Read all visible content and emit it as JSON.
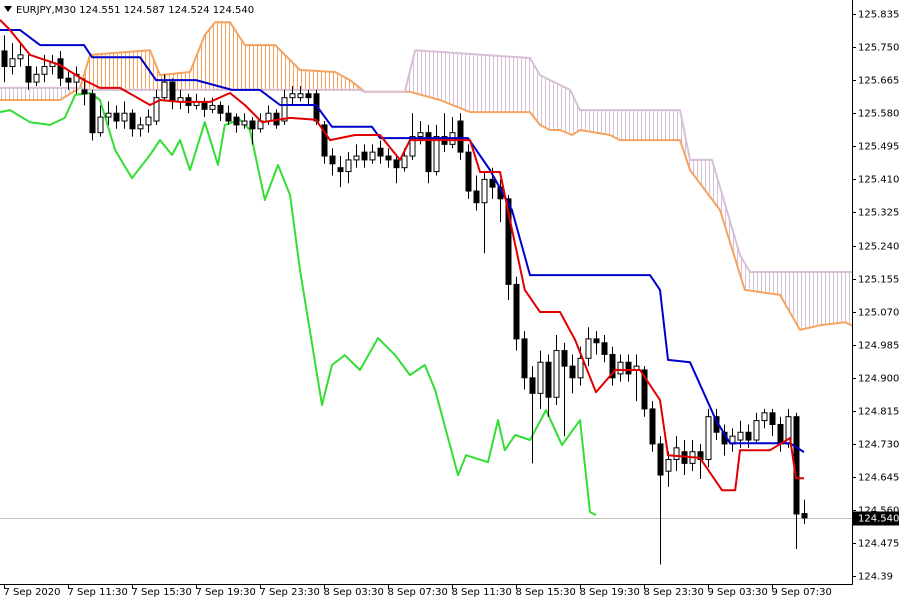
{
  "chart_data": {
    "type": "candlestick",
    "title": "EURJPY,M30  124.551 124.587 124.524 124.540",
    "xlim": [
      -0.5,
      106
    ],
    "ylim": [
      124.37,
      125.871
    ],
    "yticks": [
      125.835,
      {
        "value": 125.75,
        "label": "125.750"
      },
      125.665,
      {
        "value": 125.58,
        "label": "125.580"
      },
      125.495,
      {
        "value": 125.41,
        "label": "125.410"
      },
      125.325,
      {
        "value": 125.24,
        "label": "125.240"
      },
      125.155,
      {
        "value": 125.07,
        "label": "125.070"
      },
      124.985,
      {
        "value": 124.9,
        "label": "124.900"
      },
      124.815,
      {
        "value": 124.73,
        "label": "124.730"
      },
      124.645,
      {
        "value": 124.56,
        "label": "124.560"
      },
      124.475,
      124.39
    ],
    "xticks": [
      {
        "value": 0,
        "label": "7 Sep 2020"
      },
      {
        "value": 8,
        "label": "7 Sep 11:30"
      },
      {
        "value": 16,
        "label": "7 Sep 15:30"
      },
      {
        "value": 24,
        "label": "7 Sep 19:30"
      },
      {
        "value": 32,
        "label": "7 Sep 23:30"
      },
      {
        "value": 40,
        "label": "8 Sep 03:30"
      },
      {
        "value": 48,
        "label": "8 Sep 07:30"
      },
      {
        "value": 56,
        "label": "8 Sep 11:30"
      },
      {
        "value": 64,
        "label": "8 Sep 15:30"
      },
      {
        "value": 72,
        "label": "8 Sep 19:30"
      },
      {
        "value": 80,
        "label": "8 Sep 23:30"
      },
      {
        "value": 88,
        "label": "9 Sep 03:30"
      },
      {
        "value": 96,
        "label": "9 Sep 07:30"
      }
    ],
    "price_line": {
      "value": 124.54,
      "label": "124.540",
      "color": "#c0c0c0"
    },
    "bull_color": "#ffffff",
    "bear_color": "#000000",
    "x": [
      0,
      1,
      2,
      3,
      4,
      5,
      6,
      7,
      8,
      9,
      10,
      11,
      12,
      13,
      14,
      15,
      16,
      17,
      18,
      19,
      20,
      21,
      22,
      23,
      24,
      25,
      26,
      27,
      28,
      29,
      30,
      31,
      32,
      33,
      34,
      35,
      36,
      37,
      38,
      39,
      40,
      41,
      42,
      43,
      44,
      45,
      46,
      47,
      48,
      49,
      50,
      51,
      52,
      53,
      54,
      55,
      56,
      57,
      58,
      59,
      60,
      61,
      62,
      63,
      64,
      65,
      66,
      67,
      68,
      69,
      70,
      71,
      72,
      73,
      74,
      75,
      76,
      77,
      78,
      79,
      80,
      81,
      82,
      83,
      84,
      85,
      86,
      87,
      88,
      89,
      90,
      91,
      92,
      93,
      94,
      95,
      96,
      97,
      98,
      99,
      100
    ],
    "open": [
      125.74,
      125.7,
      125.72,
      125.7,
      125.66,
      125.68,
      125.7,
      125.72,
      125.67,
      125.66,
      125.64,
      125.63,
      125.53,
      125.57,
      125.58,
      125.56,
      125.58,
      125.54,
      125.55,
      125.56,
      125.62,
      125.66,
      125.61,
      125.62,
      125.6,
      125.61,
      125.59,
      125.6,
      125.58,
      125.57,
      125.55,
      125.56,
      125.54,
      125.56,
      125.58,
      125.56,
      125.62,
      125.62,
      125.63,
      125.63,
      125.55,
      125.47,
      125.44,
      125.43,
      125.46,
      125.48,
      125.46,
      125.49,
      125.47,
      125.46,
      125.44,
      125.47,
      125.52,
      125.53,
      125.43,
      125.52,
      125.5,
      125.56,
      125.48,
      125.38,
      125.35,
      125.41,
      125.39,
      125.36,
      125.14,
      125.0,
      124.9,
      124.86,
      124.94,
      124.85,
      124.97,
      124.93,
      124.9,
      124.95,
      125.0,
      124.99,
      124.96,
      124.91,
      124.94,
      124.92,
      124.92,
      124.82,
      124.73,
      124.66,
      124.69,
      124.71,
      124.68,
      124.71,
      124.69,
      124.8,
      124.76,
      124.73,
      124.74,
      124.76,
      124.74,
      124.79,
      124.81,
      124.78,
      124.73,
      124.8,
      124.551
    ],
    "high": [
      125.78,
      125.76,
      125.76,
      125.73,
      125.7,
      125.73,
      125.73,
      125.74,
      125.69,
      125.7,
      125.67,
      125.64,
      125.6,
      125.61,
      125.6,
      125.61,
      125.59,
      125.57,
      125.59,
      125.64,
      125.68,
      125.67,
      125.64,
      125.63,
      125.63,
      125.62,
      125.62,
      125.61,
      125.6,
      125.58,
      125.58,
      125.57,
      125.58,
      125.6,
      125.59,
      125.64,
      125.65,
      125.65,
      125.64,
      125.64,
      125.56,
      125.49,
      125.47,
      125.48,
      125.5,
      125.5,
      125.5,
      125.51,
      125.49,
      125.47,
      125.49,
      125.58,
      125.56,
      125.55,
      125.55,
      125.58,
      125.57,
      125.58,
      125.5,
      125.42,
      125.43,
      125.44,
      125.41,
      125.37,
      125.16,
      125.02,
      124.93,
      124.97,
      124.96,
      125.01,
      124.99,
      124.96,
      124.98,
      125.03,
      125.02,
      125.01,
      124.98,
      124.96,
      124.96,
      124.96,
      124.93,
      124.84,
      124.75,
      124.71,
      124.75,
      124.74,
      124.74,
      124.73,
      124.82,
      124.82,
      124.78,
      124.77,
      124.79,
      124.78,
      124.81,
      124.82,
      124.82,
      124.8,
      124.82,
      124.81,
      124.587
    ],
    "low": [
      125.66,
      125.68,
      125.7,
      125.64,
      125.65,
      125.66,
      125.68,
      125.65,
      125.64,
      125.63,
      125.6,
      125.51,
      125.52,
      125.55,
      125.54,
      125.54,
      125.52,
      125.52,
      125.53,
      125.55,
      125.61,
      125.59,
      125.59,
      125.58,
      125.59,
      125.57,
      125.58,
      125.56,
      125.55,
      125.53,
      125.54,
      125.5,
      125.53,
      125.55,
      125.54,
      125.55,
      125.6,
      125.61,
      125.6,
      125.55,
      125.45,
      125.42,
      125.39,
      125.4,
      125.44,
      125.44,
      125.45,
      125.45,
      125.44,
      125.4,
      125.43,
      125.46,
      125.5,
      125.4,
      125.42,
      125.48,
      125.49,
      125.46,
      125.36,
      125.33,
      125.22,
      125.36,
      125.3,
      125.1,
      124.97,
      124.87,
      124.68,
      124.82,
      124.8,
      124.83,
      124.75,
      124.86,
      124.88,
      124.93,
      124.96,
      124.94,
      124.88,
      124.89,
      124.89,
      124.84,
      124.8,
      124.71,
      124.42,
      124.62,
      124.66,
      124.65,
      124.66,
      124.64,
      124.67,
      124.74,
      124.7,
      124.71,
      124.72,
      124.72,
      124.73,
      124.77,
      124.75,
      124.71,
      124.72,
      124.46,
      124.524
    ],
    "close": [
      125.7,
      125.72,
      125.73,
      125.66,
      125.68,
      125.7,
      125.71,
      125.67,
      125.66,
      125.68,
      125.63,
      125.53,
      125.57,
      125.58,
      125.56,
      125.58,
      125.54,
      125.55,
      125.57,
      125.62,
      125.66,
      125.61,
      125.62,
      125.6,
      125.61,
      125.59,
      125.6,
      125.58,
      125.56,
      125.55,
      125.56,
      125.54,
      125.56,
      125.58,
      125.55,
      125.62,
      125.63,
      125.63,
      125.62,
      125.56,
      125.47,
      125.45,
      125.43,
      125.46,
      125.47,
      125.46,
      125.48,
      125.47,
      125.46,
      125.44,
      125.47,
      125.52,
      125.53,
      125.43,
      125.52,
      125.5,
      125.53,
      125.48,
      125.38,
      125.35,
      125.41,
      125.39,
      125.36,
      125.14,
      125.0,
      124.9,
      124.86,
      124.94,
      124.85,
      124.97,
      124.93,
      124.9,
      124.95,
      125.0,
      124.99,
      124.96,
      124.9,
      124.94,
      124.91,
      124.93,
      124.82,
      124.73,
      124.65,
      124.69,
      124.72,
      124.68,
      124.71,
      124.69,
      124.8,
      124.76,
      124.73,
      124.75,
      124.76,
      124.74,
      124.79,
      124.81,
      124.78,
      124.73,
      124.8,
      124.55,
      124.54
    ],
    "tenkan": {
      "color": "#e00000",
      "x": [
        -0.5,
        0.75,
        3.25,
        7,
        10,
        12,
        14.5,
        18.25,
        19.5,
        22,
        25.75,
        28.25,
        30.1,
        32.25,
        35.75,
        39,
        40.75,
        43.9,
        47,
        49.5,
        50.75,
        53.25,
        58.25,
        59.5,
        62,
        63.25,
        65.1,
        67,
        69.5,
        71.4,
        74,
        76.4,
        79.5,
        82,
        83,
        87,
        89.75,
        91.4,
        92,
        95.75,
        98.25,
        99,
        100
      ],
      "values": [
        125.82,
        125.794,
        125.73,
        125.704,
        125.665,
        125.645,
        125.645,
        125.601,
        125.614,
        125.609,
        125.609,
        125.632,
        125.601,
        125.557,
        125.568,
        125.563,
        125.511,
        125.524,
        125.524,
        125.46,
        125.511,
        125.511,
        125.511,
        125.429,
        125.429,
        125.305,
        125.126,
        125.069,
        125.069,
        124.997,
        124.863,
        124.92,
        124.92,
        124.843,
        124.701,
        124.694,
        124.611,
        124.611,
        124.714,
        124.714,
        124.745,
        124.642,
        124.642
      ]
    },
    "kijun": {
      "color": "#0000cc",
      "x": [
        -0.5,
        2,
        4.5,
        7,
        10,
        11,
        17,
        19,
        24,
        28.5,
        32,
        34.5,
        39,
        41,
        46,
        47,
        58,
        60.75,
        63.5,
        65.75,
        80.75,
        82,
        83,
        85.75,
        89,
        90.75,
        98.25,
        100
      ],
      "values": [
        125.794,
        125.794,
        125.755,
        125.755,
        125.755,
        125.724,
        125.724,
        125.665,
        125.665,
        125.64,
        125.64,
        125.601,
        125.601,
        125.545,
        125.545,
        125.516,
        125.516,
        125.434,
        125.331,
        125.164,
        125.164,
        125.126,
        124.946,
        124.94,
        124.791,
        124.732,
        124.732,
        124.709
      ]
    },
    "chikou": {
      "color": "#33dd33",
      "x": [
        -0.5,
        0.75,
        3.25,
        5.75,
        7.6,
        8.9,
        10.75,
        12,
        13.9,
        16,
        18.25,
        19.5,
        21,
        22,
        23.25,
        25.1,
        26.75,
        27.6,
        29.5,
        30.75,
        32.6,
        34.25,
        35.75,
        37,
        39.75,
        41,
        42.6,
        44.5,
        46.75,
        48.9,
        50.75,
        52.6,
        53.9,
        56.75,
        57.75,
        60.5,
        61.75,
        62.6,
        63.9,
        65.75,
        67.75,
        69.75,
        72,
        73.25,
        74
      ],
      "values": [
        125.583,
        125.588,
        125.557,
        125.55,
        125.568,
        125.627,
        125.632,
        125.614,
        125.485,
        125.413,
        125.473,
        125.511,
        125.473,
        125.511,
        125.434,
        125.557,
        125.447,
        125.55,
        125.563,
        125.537,
        125.357,
        125.447,
        125.37,
        125.177,
        124.83,
        124.933,
        124.958,
        124.92,
        125.002,
        124.958,
        124.907,
        124.933,
        124.868,
        124.65,
        124.701,
        124.683,
        124.791,
        124.714,
        124.753,
        124.74,
        124.817,
        124.727,
        124.791,
        124.555,
        124.547
      ]
    },
    "span_a": {
      "color": "#f4a460",
      "x": [
        -0.5,
        7,
        9.5,
        10.75,
        18.25,
        19.5,
        23.25,
        25.1,
        26.4,
        28.25,
        30.1,
        33.9,
        37,
        41.4,
        43.25,
        45.1,
        50.75,
        54.5,
        58.25,
        65.75,
        67,
        68.25,
        69.5,
        71,
        72,
        75.75,
        77,
        84.5,
        85.75,
        89.5,
        92.6,
        97,
        99.5,
        102,
        105.1,
        106
      ],
      "values": [
        125.614,
        125.614,
        125.645,
        125.73,
        125.742,
        125.678,
        125.686,
        125.781,
        125.814,
        125.814,
        125.755,
        125.755,
        125.691,
        125.686,
        125.665,
        125.635,
        125.635,
        125.614,
        125.583,
        125.583,
        125.55,
        125.537,
        125.537,
        125.524,
        125.537,
        125.524,
        125.511,
        125.511,
        125.434,
        125.331,
        125.126,
        125.113,
        125.023,
        125.035,
        125.043,
        125.035
      ]
    },
    "span_b": {
      "color": "#d8bfd8",
      "x": [
        -0.5,
        9.5,
        10.75,
        44.5,
        45.1,
        50.1,
        51.4,
        65.75,
        67,
        70.75,
        72,
        84.5,
        85.75,
        88.5,
        92,
        93.25,
        106
      ],
      "values": [
        125.645,
        125.645,
        125.64,
        125.64,
        125.635,
        125.635,
        125.742,
        125.722,
        125.678,
        125.64,
        125.588,
        125.588,
        125.46,
        125.46,
        125.215,
        125.172,
        125.172
      ]
    }
  }
}
